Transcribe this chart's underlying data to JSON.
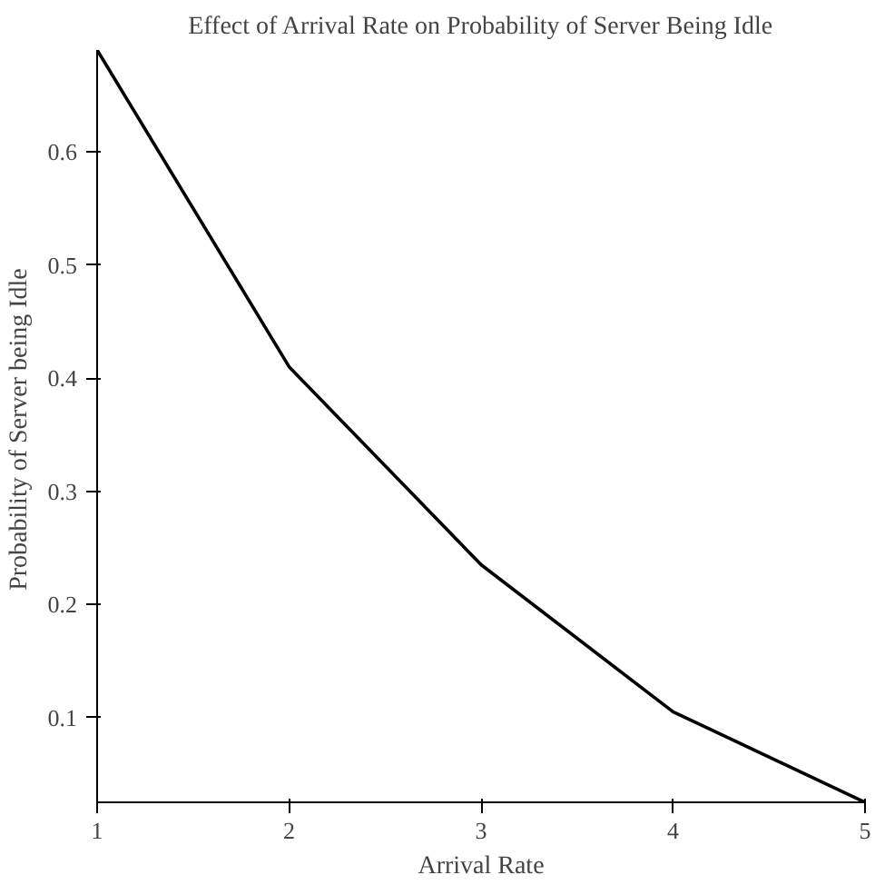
{
  "chart_data": {
    "type": "line",
    "title": "Effect of Arrival Rate on Probability of Server Being Idle",
    "xlabel": "Arrival Rate",
    "ylabel": "Probability of  Server being Idle",
    "x": [
      1,
      2,
      3,
      4,
      5
    ],
    "series": [
      {
        "color": "#000000",
        "values": [
          0.69,
          0.41,
          0.235,
          0.105,
          0.025
        ]
      }
    ],
    "xlim": [
      1,
      5
    ],
    "ylim": [
      0.025,
      0.69
    ],
    "xticks": [
      1,
      2,
      3,
      4,
      5
    ],
    "yticks": [
      0.1,
      0.2,
      0.3,
      0.4,
      0.5,
      0.6
    ],
    "line_style": "solid"
  }
}
